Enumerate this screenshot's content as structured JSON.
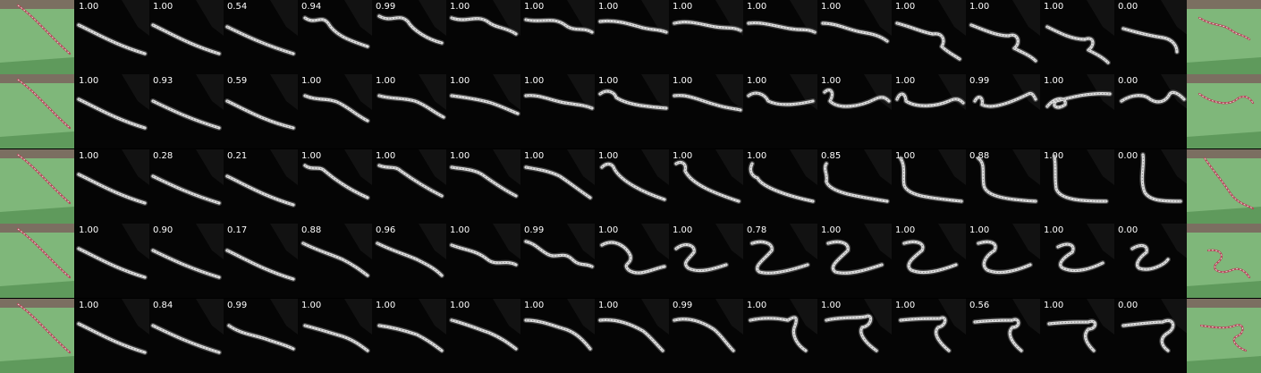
{
  "scores": [
    [
      "1.00",
      "1.00",
      "0.54",
      "0.94",
      "0.99",
      "1.00",
      "1.00",
      "1.00",
      "1.00",
      "1.00",
      "1.00",
      "1.00",
      "1.00",
      "1.00",
      "0.00"
    ],
    [
      "1.00",
      "0.93",
      "0.59",
      "1.00",
      "1.00",
      "1.00",
      "1.00",
      "1.00",
      "1.00",
      "1.00",
      "1.00",
      "1.00",
      "0.99",
      "1.00",
      "0.00"
    ],
    [
      "1.00",
      "0.28",
      "0.21",
      "1.00",
      "1.00",
      "1.00",
      "1.00",
      "1.00",
      "1.00",
      "1.00",
      "0.85",
      "1.00",
      "0.88",
      "1.00",
      "0.00"
    ],
    [
      "1.00",
      "0.90",
      "0.17",
      "0.88",
      "0.96",
      "1.00",
      "0.99",
      "1.00",
      "1.00",
      "0.78",
      "1.00",
      "1.00",
      "1.00",
      "1.00",
      "0.00"
    ],
    [
      "1.00",
      "0.84",
      "0.99",
      "1.00",
      "1.00",
      "1.00",
      "1.00",
      "1.00",
      "0.99",
      "1.00",
      "1.00",
      "1.00",
      "0.56",
      "1.00",
      "0.00"
    ]
  ]
}
